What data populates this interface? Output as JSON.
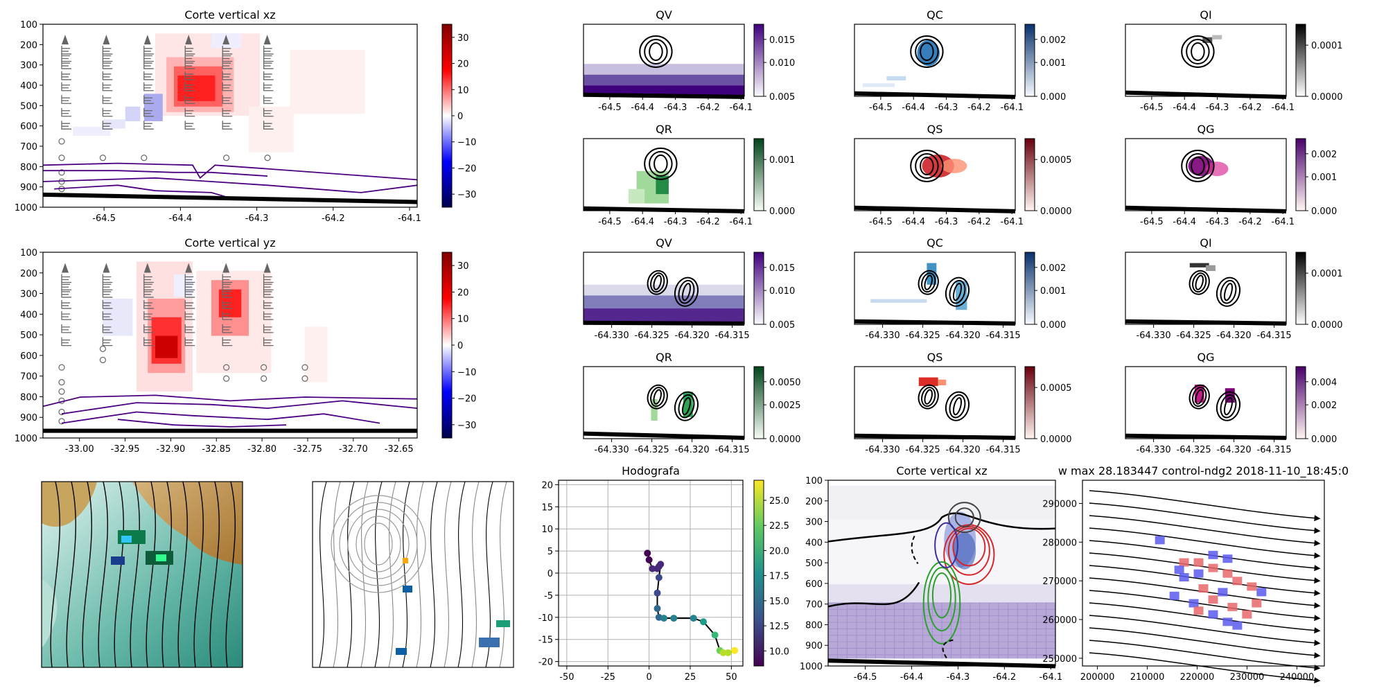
{
  "figure": {
    "panels": [
      {
        "id": "xz",
        "title": "Corte vertical xz",
        "xticks": [
          "-64.5",
          "-64.4",
          "-64.3",
          "-64.2",
          "-64.1"
        ],
        "yticks": [
          "100",
          "200",
          "300",
          "400",
          "500",
          "600",
          "700",
          "800",
          "900",
          "1000"
        ],
        "cbar_ticks": [
          "30",
          "20",
          "10",
          "0",
          "−10",
          "−20",
          "−30"
        ]
      },
      {
        "id": "yz",
        "title": "Corte vertical yz",
        "xticks": [
          "-33.00",
          "-32.95",
          "-32.90",
          "-32.85",
          "-32.80",
          "-32.75",
          "-32.70",
          "-32.65"
        ],
        "yticks": [
          "100",
          "200",
          "300",
          "400",
          "500",
          "600",
          "700",
          "800",
          "900",
          "1000"
        ],
        "cbar_ticks": [
          "30",
          "20",
          "10",
          "0",
          "−10",
          "−20",
          "−30"
        ]
      },
      {
        "id": "qv1",
        "title": "QV",
        "xticks": [
          "-64.5",
          "-64.4",
          "-64.3",
          "-64.2",
          "-64.1"
        ],
        "cbar_ticks": [
          "0.015",
          "0.010",
          "0.005"
        ]
      },
      {
        "id": "qc1",
        "title": "QC",
        "xticks": [
          "-64.5",
          "-64.4",
          "-64.3",
          "-64.2",
          "-64.1"
        ],
        "cbar_ticks": [
          "0.002",
          "0.001",
          "0.000"
        ]
      },
      {
        "id": "qi1",
        "title": "QI",
        "xticks": [
          "-64.5",
          "-64.4",
          "-64.3",
          "-64.2",
          "-64.1"
        ],
        "cbar_ticks": [
          "0.0001",
          "0.0000"
        ]
      },
      {
        "id": "qr1",
        "title": "QR",
        "xticks": [
          "-64.5",
          "-64.4",
          "-64.3",
          "-64.2",
          "-64.1"
        ],
        "cbar_ticks": [
          "0.001",
          "0.000"
        ]
      },
      {
        "id": "qs1",
        "title": "QS",
        "xticks": [
          "-64.5",
          "-64.4",
          "-64.3",
          "-64.2",
          "-64.1"
        ],
        "cbar_ticks": [
          "0.0005",
          "0.0000"
        ]
      },
      {
        "id": "qg1",
        "title": "QG",
        "xticks": [
          "-64.5",
          "-64.4",
          "-64.3",
          "-64.2",
          "-64.1"
        ],
        "cbar_ticks": [
          "0.002",
          "0.001",
          "0.000"
        ]
      },
      {
        "id": "qv2",
        "title": "QV",
        "xticks": [
          "-64.330",
          "-64.325",
          "-64.320",
          "-64.315"
        ],
        "cbar_ticks": [
          "0.015",
          "0.010",
          "0.005"
        ]
      },
      {
        "id": "qc2",
        "title": "QC",
        "xticks": [
          "-64.330",
          "-64.325",
          "-64.320",
          "-64.315"
        ],
        "cbar_ticks": [
          "0.002",
          "0.001",
          "0.000"
        ]
      },
      {
        "id": "qi2",
        "title": "QI",
        "xticks": [
          "-64.330",
          "-64.325",
          "-64.320",
          "-64.315"
        ],
        "cbar_ticks": [
          "0.0001",
          "0.0000"
        ]
      },
      {
        "id": "qr2",
        "title": "QR",
        "xticks": [
          "-64.330",
          "-64.325",
          "-64.320",
          "-64.315"
        ],
        "cbar_ticks": [
          "0.0050",
          "0.0025",
          "0.0000"
        ]
      },
      {
        "id": "qs2",
        "title": "QS",
        "xticks": [
          "-64.330",
          "-64.325",
          "-64.320",
          "-64.315"
        ],
        "cbar_ticks": [
          "0.0005",
          "0.0000"
        ]
      },
      {
        "id": "qg2",
        "title": "QG",
        "xticks": [
          "-64.330",
          "-64.325",
          "-64.320",
          "-64.315"
        ],
        "cbar_ticks": [
          "0.004",
          "0.002",
          "0.000"
        ]
      },
      {
        "id": "hodo",
        "title": "Hodografa",
        "xticks": [
          "-50",
          "-25",
          "0",
          "25",
          "50"
        ],
        "yticks": [
          "20",
          "15",
          "10",
          "5",
          "0",
          "-5",
          "-10",
          "-15",
          "-20"
        ],
        "cbar_ticks": [
          "25.0",
          "22.5",
          "20.0",
          "17.5",
          "15.0",
          "12.5",
          "10.0"
        ]
      },
      {
        "id": "xz2",
        "title": "Corte vertical xz",
        "xticks": [
          "-64.5",
          "-64.4",
          "-64.3",
          "-64.2",
          "-64.1"
        ],
        "yticks": [
          "100",
          "200",
          "300",
          "400",
          "500",
          "600",
          "700",
          "800",
          "900",
          "1000"
        ]
      },
      {
        "id": "wmax",
        "title": "w max 28.183447 control-ndg2 2018-11-10_18:45:0",
        "xticks": [
          "200000",
          "210000",
          "220000",
          "230000",
          "240000"
        ],
        "yticks": [
          "290000",
          "280000",
          "270000",
          "260000",
          "250000"
        ]
      }
    ]
  },
  "chart_data": [
    {
      "type": "heatmap",
      "title": "Corte vertical xz",
      "xlim": [
        -64.58,
        -64.09
      ],
      "ylim": [
        1000,
        100
      ],
      "clim": [
        -35,
        35
      ],
      "colormap": "seismic"
    },
    {
      "type": "heatmap",
      "title": "Corte vertical yz",
      "xlim": [
        -33.04,
        -32.63
      ],
      "ylim": [
        1000,
        100
      ],
      "clim": [
        -35,
        35
      ],
      "colormap": "seismic"
    },
    {
      "type": "heatmap",
      "title": "QV",
      "xlim": [
        -64.58,
        -64.09
      ],
      "clim": [
        0,
        0.016
      ],
      "colormap": "Purples"
    },
    {
      "type": "heatmap",
      "title": "QC",
      "xlim": [
        -64.58,
        -64.09
      ],
      "clim": [
        0,
        0.0022
      ],
      "colormap": "Blues"
    },
    {
      "type": "heatmap",
      "title": "QI",
      "xlim": [
        -64.58,
        -64.09
      ],
      "clim": [
        0,
        0.00016
      ],
      "colormap": "Greys"
    },
    {
      "type": "heatmap",
      "title": "QR",
      "xlim": [
        -64.58,
        -64.09
      ],
      "clim": [
        0,
        0.0018
      ],
      "colormap": "Greens"
    },
    {
      "type": "heatmap",
      "title": "QS",
      "xlim": [
        -64.58,
        -64.09
      ],
      "clim": [
        0,
        0.0009
      ],
      "colormap": "Reds"
    },
    {
      "type": "heatmap",
      "title": "QG",
      "xlim": [
        -64.58,
        -64.09
      ],
      "clim": [
        0,
        0.0025
      ],
      "colormap": "RdPu"
    },
    {
      "type": "heatmap",
      "title": "QV",
      "xlim": [
        -64.3335,
        -64.3135
      ],
      "clim": [
        0,
        0.016
      ],
      "colormap": "Purples"
    },
    {
      "type": "heatmap",
      "title": "QC",
      "xlim": [
        -64.3335,
        -64.3135
      ],
      "clim": [
        0,
        0.0026
      ],
      "colormap": "Blues"
    },
    {
      "type": "heatmap",
      "title": "QI",
      "xlim": [
        -64.3335,
        -64.3135
      ],
      "clim": [
        0,
        0.00018
      ],
      "colormap": "Greys"
    },
    {
      "type": "heatmap",
      "title": "QR",
      "xlim": [
        -64.3335,
        -64.3135
      ],
      "clim": [
        0,
        0.0068
      ],
      "colormap": "Greens"
    },
    {
      "type": "heatmap",
      "title": "QS",
      "xlim": [
        -64.3335,
        -64.3135
      ],
      "clim": [
        0,
        0.00095
      ],
      "colormap": "Reds"
    },
    {
      "type": "heatmap",
      "title": "QG",
      "xlim": [
        -64.3335,
        -64.3135
      ],
      "clim": [
        0,
        0.0043
      ],
      "colormap": "RdPu"
    },
    {
      "type": "line",
      "title": "Hodografa",
      "xlim": [
        -55,
        57
      ],
      "ylim": [
        -21,
        21
      ],
      "grid": true,
      "clim": [
        8.5,
        27
      ],
      "colormap": "viridis",
      "x": [
        -1,
        0,
        2,
        5,
        6,
        7,
        6,
        5,
        5,
        6,
        9,
        15,
        27,
        33,
        40,
        43,
        45,
        48,
        52
      ],
      "y": [
        4.5,
        3,
        1,
        1,
        1.5,
        2,
        -1,
        -4.5,
        -8,
        -10,
        -10.2,
        -10.2,
        -10.2,
        -11,
        -14,
        -17.5,
        -18,
        -18,
        -17.5
      ],
      "c": [
        8.6,
        9.2,
        9.6,
        10,
        10.3,
        10.8,
        12,
        13.5,
        14.5,
        15.5,
        16,
        16.5,
        17.5,
        19,
        21,
        23,
        24,
        25.5,
        26.5
      ]
    },
    {
      "type": "heatmap",
      "title": "Corte vertical xz",
      "xlim": [
        -64.58,
        -64.09
      ],
      "ylim": [
        1000,
        100
      ]
    },
    {
      "type": "scatter",
      "title": "w max 28.183447 control-ndg2 2018-11-10_18:45:0",
      "xlim": [
        197000,
        245500
      ],
      "ylim": [
        248000,
        296000
      ]
    }
  ]
}
